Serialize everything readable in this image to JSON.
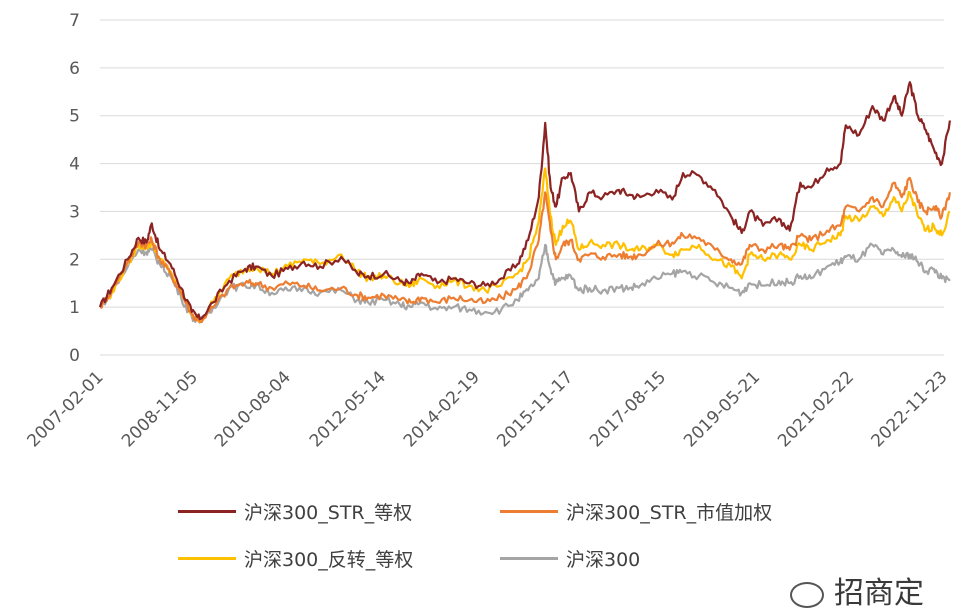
{
  "chart_data": {
    "type": "line",
    "title": "",
    "xlabel": "",
    "ylabel": "",
    "ylim": [
      0,
      7
    ],
    "y_ticks": [
      0,
      1,
      2,
      3,
      4,
      5,
      6,
      7
    ],
    "x_tick_labels": [
      "2007-02-01",
      "2008-11-05",
      "2010-08-04",
      "2012-05-14",
      "2014-02-19",
      "2015-11-17",
      "2017-08-15",
      "2019-05-21",
      "2021-02-22",
      "2022-11-23"
    ],
    "x_tick_years": [
      2007.08,
      2008.85,
      2010.59,
      2012.37,
      2014.13,
      2015.88,
      2017.62,
      2019.38,
      2021.14,
      2022.89
    ],
    "grid": "horizontal",
    "legend_position": "bottom",
    "series": [
      {
        "name": "沪深300_STR_等权",
        "color": "#8B2323",
        "points": [
          [
            2007.08,
            1.0
          ],
          [
            2007.3,
            1.4
          ],
          [
            2007.6,
            2.0
          ],
          [
            2007.8,
            2.45
          ],
          [
            2007.95,
            2.35
          ],
          [
            2008.05,
            2.75
          ],
          [
            2008.2,
            2.2
          ],
          [
            2008.4,
            1.9
          ],
          [
            2008.6,
            1.4
          ],
          [
            2008.8,
            0.9
          ],
          [
            2008.95,
            0.75
          ],
          [
            2009.2,
            1.1
          ],
          [
            2009.5,
            1.55
          ],
          [
            2009.8,
            1.8
          ],
          [
            2010.0,
            1.85
          ],
          [
            2010.3,
            1.65
          ],
          [
            2010.6,
            1.8
          ],
          [
            2010.9,
            1.95
          ],
          [
            2011.2,
            1.85
          ],
          [
            2011.6,
            2.05
          ],
          [
            2011.9,
            1.7
          ],
          [
            2012.1,
            1.65
          ],
          [
            2012.4,
            1.7
          ],
          [
            2012.7,
            1.55
          ],
          [
            2012.9,
            1.5
          ],
          [
            2013.1,
            1.7
          ],
          [
            2013.4,
            1.5
          ],
          [
            2013.7,
            1.6
          ],
          [
            2014.0,
            1.5
          ],
          [
            2014.3,
            1.45
          ],
          [
            2014.6,
            1.6
          ],
          [
            2014.9,
            1.9
          ],
          [
            2015.1,
            2.4
          ],
          [
            2015.3,
            3.3
          ],
          [
            2015.42,
            4.85
          ],
          [
            2015.52,
            3.5
          ],
          [
            2015.62,
            3.1
          ],
          [
            2015.75,
            3.7
          ],
          [
            2015.9,
            3.8
          ],
          [
            2016.05,
            3.0
          ],
          [
            2016.25,
            3.4
          ],
          [
            2016.5,
            3.3
          ],
          [
            2016.8,
            3.45
          ],
          [
            2017.0,
            3.35
          ],
          [
            2017.2,
            3.3
          ],
          [
            2017.5,
            3.45
          ],
          [
            2017.8,
            3.25
          ],
          [
            2018.0,
            3.8
          ],
          [
            2018.3,
            3.75
          ],
          [
            2018.6,
            3.45
          ],
          [
            2018.9,
            2.9
          ],
          [
            2019.1,
            2.55
          ],
          [
            2019.25,
            3.0
          ],
          [
            2019.5,
            2.7
          ],
          [
            2019.8,
            2.85
          ],
          [
            2020.0,
            2.6
          ],
          [
            2020.2,
            3.6
          ],
          [
            2020.4,
            3.5
          ],
          [
            2020.7,
            3.9
          ],
          [
            2020.95,
            4.0
          ],
          [
            2021.05,
            4.8
          ],
          [
            2021.3,
            4.6
          ],
          [
            2021.55,
            5.2
          ],
          [
            2021.75,
            4.9
          ],
          [
            2021.95,
            5.4
          ],
          [
            2022.1,
            5.0
          ],
          [
            2022.25,
            5.7
          ],
          [
            2022.4,
            5.0
          ],
          [
            2022.55,
            4.7
          ],
          [
            2022.7,
            4.3
          ],
          [
            2022.85,
            4.0
          ],
          [
            2023.0,
            4.9
          ]
        ]
      },
      {
        "name": "沪深300_STR_市值加权",
        "color": "#ED7D31",
        "points": [
          [
            2007.08,
            1.0
          ],
          [
            2007.3,
            1.35
          ],
          [
            2007.6,
            1.95
          ],
          [
            2007.8,
            2.35
          ],
          [
            2007.95,
            2.3
          ],
          [
            2008.05,
            2.4
          ],
          [
            2008.2,
            2.0
          ],
          [
            2008.4,
            1.7
          ],
          [
            2008.6,
            1.3
          ],
          [
            2008.8,
            0.85
          ],
          [
            2008.95,
            0.7
          ],
          [
            2009.2,
            1.0
          ],
          [
            2009.5,
            1.4
          ],
          [
            2009.8,
            1.5
          ],
          [
            2010.0,
            1.5
          ],
          [
            2010.3,
            1.4
          ],
          [
            2010.6,
            1.5
          ],
          [
            2010.9,
            1.45
          ],
          [
            2011.2,
            1.35
          ],
          [
            2011.6,
            1.4
          ],
          [
            2011.9,
            1.25
          ],
          [
            2012.1,
            1.2
          ],
          [
            2012.4,
            1.25
          ],
          [
            2012.7,
            1.15
          ],
          [
            2012.9,
            1.1
          ],
          [
            2013.1,
            1.2
          ],
          [
            2013.4,
            1.1
          ],
          [
            2013.7,
            1.2
          ],
          [
            2014.0,
            1.15
          ],
          [
            2014.3,
            1.1
          ],
          [
            2014.6,
            1.2
          ],
          [
            2014.9,
            1.4
          ],
          [
            2015.1,
            1.7
          ],
          [
            2015.3,
            2.4
          ],
          [
            2015.42,
            3.4
          ],
          [
            2015.52,
            2.6
          ],
          [
            2015.62,
            2.0
          ],
          [
            2015.75,
            2.3
          ],
          [
            2015.9,
            2.4
          ],
          [
            2016.05,
            2.0
          ],
          [
            2016.25,
            2.1
          ],
          [
            2016.5,
            2.05
          ],
          [
            2016.8,
            2.1
          ],
          [
            2017.0,
            2.05
          ],
          [
            2017.2,
            2.1
          ],
          [
            2017.5,
            2.3
          ],
          [
            2017.8,
            2.35
          ],
          [
            2018.0,
            2.5
          ],
          [
            2018.3,
            2.45
          ],
          [
            2018.6,
            2.2
          ],
          [
            2018.9,
            2.0
          ],
          [
            2019.1,
            1.9
          ],
          [
            2019.25,
            2.3
          ],
          [
            2019.5,
            2.2
          ],
          [
            2019.8,
            2.3
          ],
          [
            2020.0,
            2.2
          ],
          [
            2020.2,
            2.5
          ],
          [
            2020.4,
            2.4
          ],
          [
            2020.7,
            2.6
          ],
          [
            2020.95,
            2.7
          ],
          [
            2021.05,
            3.1
          ],
          [
            2021.3,
            3.0
          ],
          [
            2021.55,
            3.3
          ],
          [
            2021.75,
            3.1
          ],
          [
            2021.95,
            3.6
          ],
          [
            2022.1,
            3.3
          ],
          [
            2022.25,
            3.7
          ],
          [
            2022.4,
            3.2
          ],
          [
            2022.55,
            3.0
          ],
          [
            2022.7,
            3.1
          ],
          [
            2022.85,
            2.9
          ],
          [
            2023.0,
            3.4
          ]
        ]
      },
      {
        "name": "沪深300_反转_等权",
        "color": "#FFC000",
        "points": [
          [
            2007.08,
            1.0
          ],
          [
            2007.3,
            1.3
          ],
          [
            2007.6,
            1.9
          ],
          [
            2007.8,
            2.3
          ],
          [
            2007.95,
            2.25
          ],
          [
            2008.05,
            2.35
          ],
          [
            2008.2,
            2.0
          ],
          [
            2008.4,
            1.75
          ],
          [
            2008.6,
            1.3
          ],
          [
            2008.8,
            0.85
          ],
          [
            2008.95,
            0.72
          ],
          [
            2009.2,
            1.1
          ],
          [
            2009.5,
            1.6
          ],
          [
            2009.8,
            1.8
          ],
          [
            2010.0,
            1.85
          ],
          [
            2010.3,
            1.7
          ],
          [
            2010.6,
            1.85
          ],
          [
            2010.9,
            2.0
          ],
          [
            2011.2,
            1.9
          ],
          [
            2011.6,
            2.1
          ],
          [
            2011.9,
            1.75
          ],
          [
            2012.1,
            1.6
          ],
          [
            2012.4,
            1.65
          ],
          [
            2012.7,
            1.5
          ],
          [
            2012.9,
            1.45
          ],
          [
            2013.1,
            1.6
          ],
          [
            2013.4,
            1.45
          ],
          [
            2013.7,
            1.55
          ],
          [
            2014.0,
            1.45
          ],
          [
            2014.3,
            1.35
          ],
          [
            2014.6,
            1.45
          ],
          [
            2014.9,
            1.7
          ],
          [
            2015.1,
            2.0
          ],
          [
            2015.3,
            2.8
          ],
          [
            2015.42,
            3.9
          ],
          [
            2015.52,
            2.9
          ],
          [
            2015.62,
            2.3
          ],
          [
            2015.75,
            2.7
          ],
          [
            2015.9,
            2.8
          ],
          [
            2016.05,
            2.2
          ],
          [
            2016.25,
            2.35
          ],
          [
            2016.5,
            2.3
          ],
          [
            2016.8,
            2.3
          ],
          [
            2017.0,
            2.2
          ],
          [
            2017.2,
            2.2
          ],
          [
            2017.5,
            2.3
          ],
          [
            2017.8,
            2.1
          ],
          [
            2018.0,
            2.2
          ],
          [
            2018.3,
            2.3
          ],
          [
            2018.6,
            2.0
          ],
          [
            2018.9,
            1.85
          ],
          [
            2019.1,
            1.6
          ],
          [
            2019.25,
            2.1
          ],
          [
            2019.5,
            2.0
          ],
          [
            2019.8,
            2.1
          ],
          [
            2020.0,
            2.0
          ],
          [
            2020.2,
            2.3
          ],
          [
            2020.4,
            2.2
          ],
          [
            2020.7,
            2.4
          ],
          [
            2020.95,
            2.5
          ],
          [
            2021.05,
            2.9
          ],
          [
            2021.3,
            2.8
          ],
          [
            2021.55,
            3.1
          ],
          [
            2021.75,
            2.9
          ],
          [
            2021.95,
            3.3
          ],
          [
            2022.1,
            3.0
          ],
          [
            2022.25,
            3.4
          ],
          [
            2022.4,
            2.9
          ],
          [
            2022.55,
            2.6
          ],
          [
            2022.7,
            2.7
          ],
          [
            2022.85,
            2.5
          ],
          [
            2023.0,
            3.0
          ]
        ]
      },
      {
        "name": "沪深300",
        "color": "#A5A5A5",
        "points": [
          [
            2007.08,
            1.0
          ],
          [
            2007.3,
            1.3
          ],
          [
            2007.6,
            1.85
          ],
          [
            2007.8,
            2.2
          ],
          [
            2007.95,
            2.15
          ],
          [
            2008.05,
            2.2
          ],
          [
            2008.2,
            1.9
          ],
          [
            2008.4,
            1.65
          ],
          [
            2008.6,
            1.2
          ],
          [
            2008.8,
            0.8
          ],
          [
            2008.95,
            0.68
          ],
          [
            2009.2,
            1.0
          ],
          [
            2009.5,
            1.4
          ],
          [
            2009.8,
            1.45
          ],
          [
            2010.0,
            1.45
          ],
          [
            2010.3,
            1.3
          ],
          [
            2010.6,
            1.35
          ],
          [
            2010.9,
            1.4
          ],
          [
            2011.2,
            1.3
          ],
          [
            2011.6,
            1.35
          ],
          [
            2011.9,
            1.15
          ],
          [
            2012.1,
            1.1
          ],
          [
            2012.4,
            1.15
          ],
          [
            2012.7,
            1.05
          ],
          [
            2012.9,
            1.0
          ],
          [
            2013.1,
            1.1
          ],
          [
            2013.4,
            0.95
          ],
          [
            2013.7,
            1.0
          ],
          [
            2014.0,
            0.95
          ],
          [
            2014.3,
            0.9
          ],
          [
            2014.6,
            0.95
          ],
          [
            2014.9,
            1.15
          ],
          [
            2015.1,
            1.35
          ],
          [
            2015.3,
            1.6
          ],
          [
            2015.42,
            2.3
          ],
          [
            2015.52,
            1.8
          ],
          [
            2015.62,
            1.5
          ],
          [
            2015.75,
            1.6
          ],
          [
            2015.9,
            1.65
          ],
          [
            2016.05,
            1.35
          ],
          [
            2016.25,
            1.4
          ],
          [
            2016.5,
            1.35
          ],
          [
            2016.8,
            1.4
          ],
          [
            2017.0,
            1.4
          ],
          [
            2017.2,
            1.45
          ],
          [
            2017.5,
            1.6
          ],
          [
            2017.8,
            1.7
          ],
          [
            2018.0,
            1.75
          ],
          [
            2018.3,
            1.65
          ],
          [
            2018.6,
            1.5
          ],
          [
            2018.9,
            1.4
          ],
          [
            2019.1,
            1.3
          ],
          [
            2019.25,
            1.5
          ],
          [
            2019.5,
            1.45
          ],
          [
            2019.8,
            1.55
          ],
          [
            2020.0,
            1.5
          ],
          [
            2020.2,
            1.65
          ],
          [
            2020.4,
            1.6
          ],
          [
            2020.7,
            1.85
          ],
          [
            2020.95,
            1.95
          ],
          [
            2021.05,
            2.05
          ],
          [
            2021.3,
            2.0
          ],
          [
            2021.55,
            2.3
          ],
          [
            2021.75,
            2.1
          ],
          [
            2021.95,
            2.2
          ],
          [
            2022.1,
            2.05
          ],
          [
            2022.25,
            2.1
          ],
          [
            2022.4,
            1.95
          ],
          [
            2022.55,
            1.75
          ],
          [
            2022.7,
            1.8
          ],
          [
            2022.85,
            1.6
          ],
          [
            2023.0,
            1.55
          ]
        ]
      }
    ]
  },
  "watermark": {
    "text": "招商定"
  }
}
